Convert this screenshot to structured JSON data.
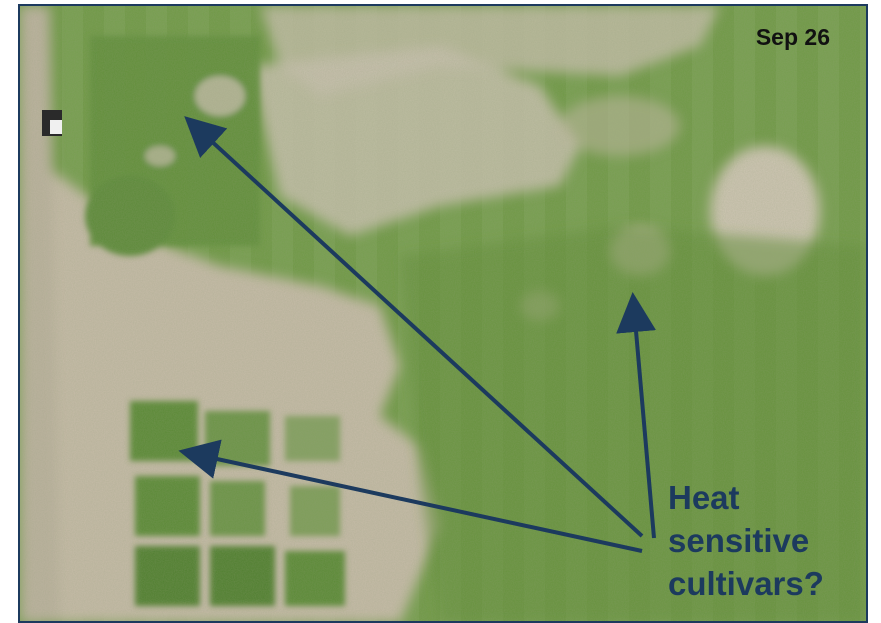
{
  "photo": {
    "subject": "aerial photo of turfgrass field plots",
    "date_label": "Sep 26",
    "colors": {
      "grass_green": "#6f9a45",
      "grass_dark": "#4f7a2e",
      "bare_soil": "#c9bfae",
      "arrow": "#1c3a5e"
    }
  },
  "annotation": {
    "lines": [
      "Heat",
      "sensitive",
      "cultivars?"
    ]
  }
}
